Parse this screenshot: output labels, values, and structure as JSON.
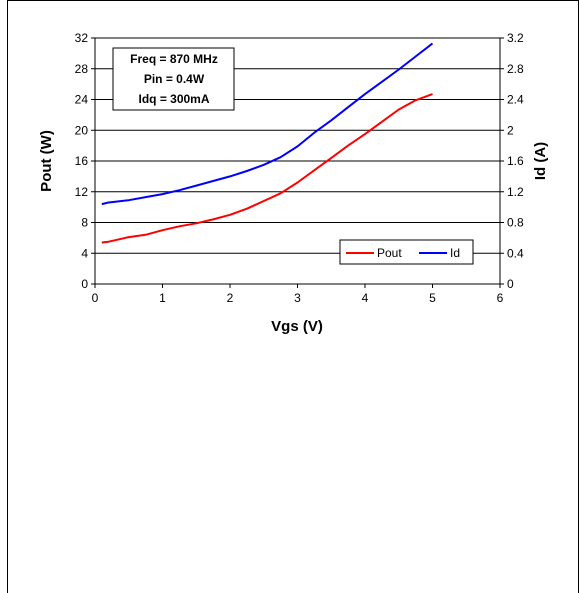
{
  "chart_data": {
    "type": "line",
    "title": "",
    "xlabel": "Vgs (V)",
    "ylabel_left": "Pout (W)",
    "ylabel_right": "Id (A)",
    "xlim": [
      0,
      6
    ],
    "ylim_left": [
      0,
      32
    ],
    "ylim_right": [
      0,
      3.2
    ],
    "xticks": [
      "0",
      "1",
      "2",
      "3",
      "4",
      "5",
      "6"
    ],
    "yticks_left": [
      "0",
      "4",
      "8",
      "12",
      "16",
      "20",
      "24",
      "28",
      "32"
    ],
    "yticks_right": [
      "0",
      "0.4",
      "0.8",
      "1.2",
      "1.6",
      "2",
      "2.4",
      "2.8",
      "3.2"
    ],
    "grid": "horizontal",
    "annotation": [
      "Freq = 870 MHz",
      "Pin = 0.4W",
      "Idq = 300mA"
    ],
    "legend_position": "bottom-right",
    "series": [
      {
        "name": "Pout",
        "axis": "left",
        "color": "#ff0000",
        "x": [
          0.1,
          0.2,
          0.3,
          0.5,
          0.75,
          1.0,
          1.25,
          1.5,
          1.75,
          2.0,
          2.25,
          2.5,
          2.75,
          3.0,
          3.25,
          3.5,
          3.75,
          4.0,
          4.25,
          4.5,
          4.75,
          5.0
        ],
        "y": [
          5.4,
          5.5,
          5.7,
          6.1,
          6.4,
          7.0,
          7.5,
          7.9,
          8.4,
          9.0,
          9.8,
          10.8,
          11.8,
          13.2,
          14.8,
          16.4,
          18.0,
          19.5,
          21.1,
          22.7,
          23.9,
          24.7
        ]
      },
      {
        "name": "Id",
        "axis": "right",
        "color": "#0000ff",
        "x": [
          0.1,
          0.2,
          0.3,
          0.5,
          0.75,
          1.0,
          1.25,
          1.5,
          1.75,
          2.0,
          2.25,
          2.5,
          2.75,
          3.0,
          3.25,
          3.5,
          3.75,
          4.0,
          4.25,
          4.5,
          4.75,
          5.0
        ],
        "y": [
          1.04,
          1.06,
          1.07,
          1.09,
          1.13,
          1.17,
          1.22,
          1.28,
          1.34,
          1.4,
          1.47,
          1.55,
          1.65,
          1.79,
          1.97,
          2.13,
          2.3,
          2.47,
          2.63,
          2.79,
          2.96,
          3.13
        ]
      }
    ]
  }
}
